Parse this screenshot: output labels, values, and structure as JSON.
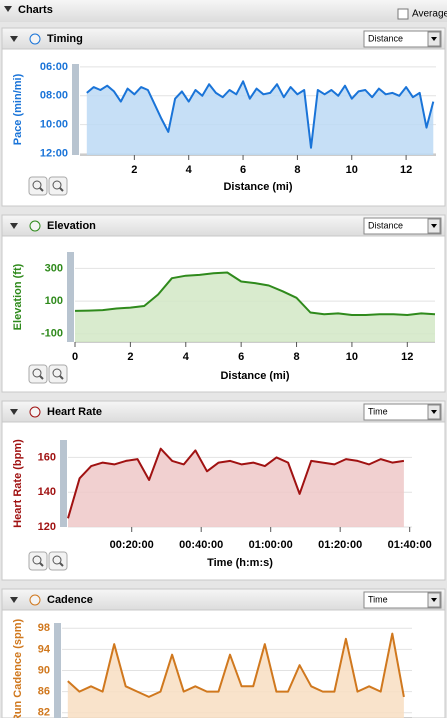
{
  "header": {
    "title": "Charts",
    "average_label": "Average"
  },
  "chart_data": [
    {
      "type": "area",
      "title": "Timing",
      "dropdown": "Distance",
      "ylabel": "Pace (min/mi)",
      "xlabel": "Distance (mi)",
      "color": "#1a74d8",
      "fill": "#bcd9f4",
      "invert_y": true,
      "x": [
        0.25,
        0.5,
        0.75,
        1.0,
        1.25,
        1.5,
        1.75,
        2.0,
        2.25,
        2.5,
        2.75,
        3.0,
        3.25,
        3.5,
        3.75,
        4.0,
        4.25,
        4.5,
        4.75,
        5.0,
        5.25,
        5.5,
        5.75,
        6.0,
        6.25,
        6.5,
        6.75,
        7.0,
        7.25,
        7.5,
        7.75,
        8.0,
        8.25,
        8.5,
        8.75,
        9.0,
        9.25,
        9.5,
        9.75,
        10.0,
        10.25,
        10.5,
        10.75,
        11.0,
        11.25,
        11.5,
        11.75,
        12.0,
        12.25,
        12.5,
        12.75,
        13.0
      ],
      "values": [
        7.8,
        7.4,
        7.6,
        7.3,
        7.7,
        8.4,
        7.5,
        7.9,
        7.4,
        7.6,
        8.6,
        9.6,
        10.5,
        8.2,
        7.7,
        8.4,
        7.6,
        8.0,
        7.2,
        7.8,
        8.1,
        7.6,
        7.9,
        7.0,
        8.2,
        7.5,
        7.9,
        7.8,
        7.2,
        8.1,
        7.4,
        7.9,
        7.6,
        11.6,
        7.6,
        7.9,
        7.6,
        8.0,
        7.3,
        8.2,
        7.7,
        7.6,
        8.1,
        7.5,
        7.9,
        7.8,
        8.0,
        7.4,
        8.1,
        7.8,
        10.2,
        8.4
      ],
      "xlim": [
        0,
        13.1
      ],
      "ylim": [
        12.1,
        5.8
      ],
      "xticks": [
        2,
        4,
        6,
        8,
        10,
        12
      ],
      "yticks": [
        {
          "value": 6,
          "label": "06:00"
        },
        {
          "value": 8,
          "label": "08:00"
        },
        {
          "value": 10,
          "label": "10:00"
        },
        {
          "value": 12,
          "label": "12:00"
        }
      ],
      "grid": true
    },
    {
      "type": "area",
      "title": "Elevation",
      "dropdown": "Distance",
      "ylabel": "Elevation (ft)",
      "xlabel": "Distance (mi)",
      "color": "#2f8a1c",
      "fill": "#d2e7c6",
      "x": [
        0,
        0.5,
        1,
        1.5,
        2,
        2.5,
        3,
        3.5,
        4,
        4.5,
        5,
        5.5,
        6,
        6.5,
        7,
        7.5,
        8,
        8.5,
        9,
        9.5,
        10,
        10.5,
        11,
        11.5,
        12,
        12.5,
        13
      ],
      "values": [
        40,
        42,
        45,
        55,
        60,
        70,
        140,
        240,
        255,
        260,
        270,
        275,
        220,
        210,
        195,
        160,
        120,
        30,
        20,
        25,
        15,
        15,
        20,
        20,
        15,
        25,
        20
      ],
      "xlim": [
        0,
        13
      ],
      "ylim": [
        -150,
        400
      ],
      "xticks": [
        0,
        2,
        4,
        6,
        8,
        10,
        12
      ],
      "yticks": [
        -100,
        100,
        300
      ],
      "grid": true
    },
    {
      "type": "area",
      "title": "Heart Rate",
      "dropdown": "Time",
      "ylabel": "Heart Rate (bpm)",
      "xlabel": "Time (h:m:s)",
      "color": "#a01212",
      "fill": "#eec8c8",
      "x": [
        100,
        300,
        500,
        700,
        900,
        1100,
        1300,
        1500,
        1700,
        1900,
        2100,
        2300,
        2500,
        2700,
        2900,
        3100,
        3300,
        3500,
        3700,
        3900,
        4100,
        4300,
        4500,
        4700,
        4900,
        5100,
        5300,
        5500,
        5700,
        5900
      ],
      "values": [
        125,
        148,
        155,
        157,
        156,
        158,
        159,
        147,
        165,
        158,
        156,
        164,
        152,
        157,
        158,
        156,
        157,
        155,
        160,
        157,
        139,
        158,
        157,
        156,
        159,
        158,
        156,
        159,
        157,
        158
      ],
      "xlim": [
        100,
        6040
      ],
      "ylim": [
        120,
        170
      ],
      "xticks": [
        {
          "value": 1200,
          "label": "00:20:00"
        },
        {
          "value": 2400,
          "label": "00:40:00"
        },
        {
          "value": 3600,
          "label": "01:00:00"
        },
        {
          "value": 4800,
          "label": "01:20:00"
        },
        {
          "value": 6000,
          "label": "01:40:00"
        }
      ],
      "yticks": [
        120,
        140,
        160
      ],
      "grid": true
    },
    {
      "type": "area",
      "title": "Cadence",
      "dropdown": "Time",
      "ylabel": "Run Cadence (spm)",
      "color": "#d0781e",
      "fill": "#f8dec2",
      "x": [
        100,
        300,
        500,
        700,
        900,
        1100,
        1300,
        1500,
        1700,
        1900,
        2100,
        2300,
        2500,
        2700,
        2900,
        3100,
        3300,
        3500,
        3700,
        3900,
        4100,
        4300,
        4500,
        4700,
        4900,
        5100,
        5300,
        5500,
        5700,
        5900
      ],
      "values": [
        88,
        86,
        87,
        86,
        95,
        87,
        86,
        85,
        86,
        93,
        86,
        87,
        86,
        86,
        93,
        87,
        87,
        95,
        86,
        86,
        91,
        87,
        86,
        86,
        96,
        86,
        87,
        86,
        97,
        85
      ],
      "xlim": [
        0,
        6040
      ],
      "ylim": [
        81,
        99
      ],
      "yticks": [
        82,
        86,
        90,
        94,
        98
      ],
      "grid": true
    }
  ]
}
